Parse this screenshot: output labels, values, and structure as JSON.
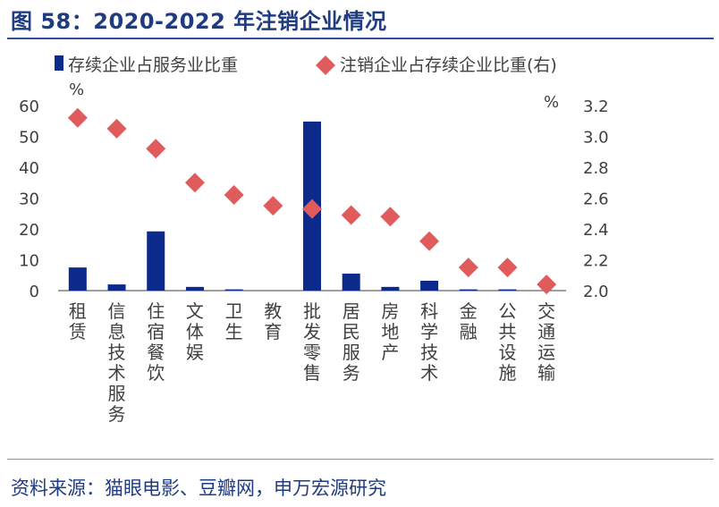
{
  "title": "图 58：2020-2022 年注销企业情况",
  "source": "资料来源：猫眼电影、豆瓣网，申万宏源研究",
  "colors": {
    "accent": "#1f3b82",
    "bar": "#0b2a8c",
    "marker": "#e05c5c",
    "axis": "#404040"
  },
  "chart_data": {
    "type": "bar",
    "categories": [
      "租赁",
      "信息技术服务",
      "住宿餐饮",
      "文体娱",
      "卫生",
      "教育",
      "批发零售",
      "居民服务",
      "房地产",
      "科学技术",
      "金融",
      "公共设施",
      "交通运输"
    ],
    "series": [
      {
        "name": "存续企业占服务业比重",
        "type": "bar",
        "axis": "left",
        "values": [
          7.5,
          2.0,
          19.2,
          1.2,
          0.4,
          0.0,
          54.8,
          5.5,
          1.2,
          3.2,
          0.4,
          0.4,
          0.0
        ]
      },
      {
        "name": "注销企业占存续企业比重(右)",
        "type": "scatter",
        "marker": "diamond",
        "axis": "right",
        "values": [
          3.12,
          3.05,
          2.92,
          2.7,
          2.62,
          2.55,
          2.53,
          2.49,
          2.48,
          2.32,
          2.15,
          2.15,
          2.04
        ]
      }
    ],
    "yleft": {
      "unit": "%",
      "ylim": [
        0,
        60
      ],
      "ticks": [
        "0",
        "10",
        "20",
        "30",
        "40",
        "50",
        "60"
      ]
    },
    "yright": {
      "unit": "%",
      "ylim": [
        2.0,
        3.2
      ],
      "ticks": [
        "2.0",
        "2.2",
        "2.4",
        "2.6",
        "2.8",
        "3.0",
        "3.2"
      ]
    },
    "legend_placement": "top",
    "grid": false
  }
}
